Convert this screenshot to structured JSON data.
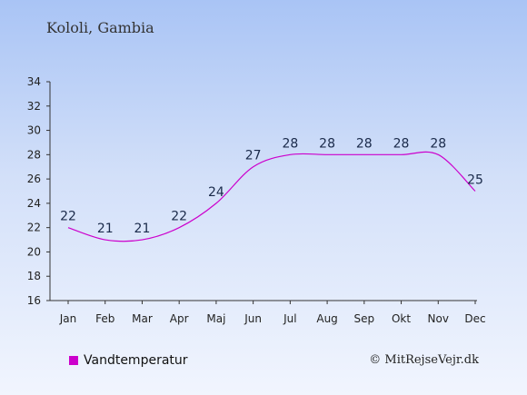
{
  "title": "Kololi, Gambia",
  "credit": "© MitRejseVejr.dk",
  "colors": {
    "series": "#cc00cc",
    "axis": "#333333",
    "label": "#1a2a4a"
  },
  "chart_data": {
    "type": "line",
    "title": "Kololi, Gambia",
    "xlabel": "",
    "ylabel": "",
    "categories": [
      "Jan",
      "Feb",
      "Mar",
      "Apr",
      "Maj",
      "Jun",
      "Jul",
      "Aug",
      "Sep",
      "Okt",
      "Nov",
      "Dec"
    ],
    "series": [
      {
        "name": "Vandtemperatur",
        "values": [
          22,
          21,
          21,
          22,
          24,
          27,
          28,
          28,
          28,
          28,
          28,
          25
        ]
      }
    ],
    "ylim": [
      16,
      34
    ],
    "yticks": [
      16,
      18,
      20,
      22,
      24,
      26,
      28,
      30,
      32,
      34
    ],
    "grid": false,
    "legend": "bottom-left"
  }
}
